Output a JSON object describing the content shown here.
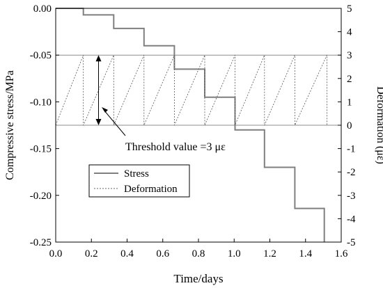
{
  "chart_data": {
    "type": "line",
    "xlabel": "Time/days",
    "ylabel_left": "Compressive stress/MPa",
    "ylabel_right": "Deformation (με)",
    "xlim": [
      0.0,
      1.6
    ],
    "ylim_left": [
      -0.25,
      0.0
    ],
    "ylim_right": [
      -5,
      5
    ],
    "x_ticks": [
      "0.0",
      "0.2",
      "0.4",
      "0.6",
      "0.8",
      "1.0",
      "1.2",
      "1.4",
      "1.6"
    ],
    "y_left_ticks": [
      "0.00",
      "-0.05",
      "-0.10",
      "-0.15",
      "-0.20",
      "-0.25"
    ],
    "y_right_ticks": [
      "5",
      "4",
      "3",
      "2",
      "1",
      "0",
      "-1",
      "-2",
      "-3",
      "-4",
      "-5"
    ],
    "reference_lines_right": [
      3,
      0
    ],
    "annotation": {
      "text": "Threshold value =3 με",
      "arrow_x": 0.24,
      "arrow_from": 0,
      "arrow_to": 3
    },
    "legend": {
      "placement": "lower-left",
      "entries": [
        "Stress",
        "Deformation"
      ]
    },
    "series": [
      {
        "name": "Stress",
        "axis": "left",
        "style": "solid",
        "x": [
          0.0,
          0.155,
          0.155,
          0.325,
          0.325,
          0.495,
          0.495,
          0.665,
          0.665,
          0.835,
          0.835,
          1.005,
          1.005,
          1.17,
          1.17,
          1.34,
          1.34,
          1.505,
          1.505
        ],
        "y": [
          0.0,
          0.0,
          -0.007,
          -0.007,
          -0.0215,
          -0.0215,
          -0.04,
          -0.04,
          -0.065,
          -0.065,
          -0.095,
          -0.095,
          -0.13,
          -0.13,
          -0.17,
          -0.17,
          -0.214,
          -0.214,
          -0.25
        ]
      },
      {
        "name": "Deformation",
        "axis": "right",
        "style": "dashed",
        "x": [
          0.0,
          0.155,
          0.155,
          0.155,
          0.325,
          0.325,
          0.325,
          0.495,
          0.495,
          0.495,
          0.665,
          0.665,
          0.665,
          0.835,
          0.835,
          0.835,
          1.005,
          1.005,
          1.005,
          1.17,
          1.17,
          1.17,
          1.34,
          1.34,
          1.34,
          1.52,
          1.52
        ],
        "y": [
          0,
          3,
          0,
          0,
          3,
          0,
          0,
          3,
          0,
          0,
          3,
          0,
          0,
          3,
          0,
          0,
          3,
          0,
          0,
          3,
          0,
          0,
          3,
          0,
          0,
          3,
          0
        ]
      }
    ]
  }
}
